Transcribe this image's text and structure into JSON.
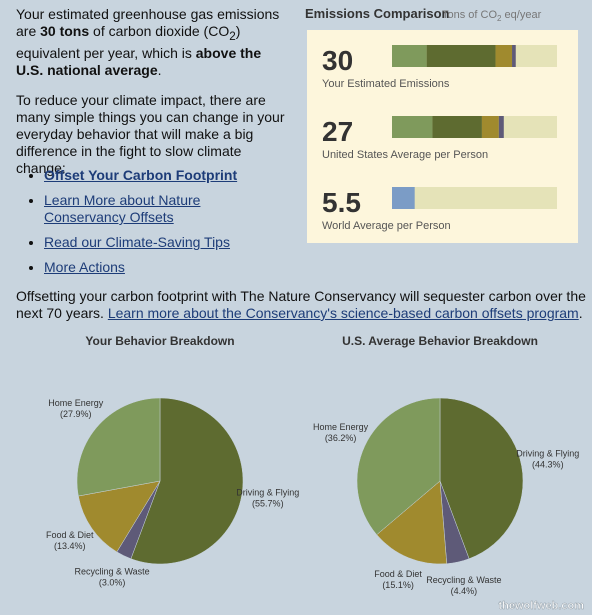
{
  "intro": [
    "Your estimated greenhouse gas emissions are ",
    "30 tons",
    " of carbon dioxide (CO",
    "2",
    ") equivalent per year, which is ",
    "above the U.S. national average",
    "."
  ],
  "paragraph": "To reduce your climate impact, there are many simple things you can change in your everyday behavior that will make a big difference in the fight to slow climate change:",
  "links": [
    "Offset Your Carbon Footprint",
    "Learn More about Nature Conservancy Offsets",
    "Read our Climate-Saving Tips",
    "More Actions"
  ],
  "footer": [
    "Offsetting your carbon footprint with The Nature Conservancy will sequester carbon over the next 70 years. ",
    "Learn more about the Conservancy's science-based carbon offsets program",
    "."
  ],
  "watermark": "thewolfweb.com",
  "chart_data": [
    {
      "type": "stacked-bar",
      "title": "Emissions Comparison",
      "subtitle": [
        "Tons of CO",
        "2",
        " eq/year"
      ],
      "categories": [
        "Your Estimated Emissions",
        "United States Average per Person",
        "World Average per Person"
      ],
      "totals": [
        30,
        27,
        5.5
      ],
      "xlim": [
        0,
        40
      ],
      "track_color": "#e5e3b8",
      "series": [
        {
          "color": "#7f9a5c",
          "values": [
            8.4,
            9.8,
            null
          ]
        },
        {
          "color": "#5e6b30",
          "values": [
            16.7,
            12,
            null
          ]
        },
        {
          "color": "#a08a2e",
          "values": [
            4,
            4.1,
            null
          ]
        },
        {
          "color": "#5e5a78",
          "values": [
            0.9,
            1.2,
            null
          ]
        },
        {
          "color": "#7b9cc6",
          "values": [
            null,
            null,
            5.5
          ]
        }
      ]
    },
    {
      "type": "pie",
      "title": "Your Behavior Breakdown",
      "categories": [
        "Driving & Flying",
        "Recycling & Waste",
        "Food & Diet",
        "Home Energy"
      ],
      "values": [
        55.7,
        3.0,
        13.4,
        27.9
      ],
      "value_labels": [
        "(55.7%)",
        "(3.0%)",
        "(13.4%)",
        "(27.9%)"
      ],
      "colors": [
        "#5e6b30",
        "#5e5a78",
        "#a08a2e",
        "#7f9a5c"
      ]
    },
    {
      "type": "pie",
      "title": "U.S. Average Behavior Breakdown",
      "categories": [
        "Driving & Flying",
        "Recycling & Waste",
        "Food & Diet",
        "Home Energy"
      ],
      "values": [
        44.3,
        4.4,
        15.1,
        36.2
      ],
      "value_labels": [
        "(44.3%)",
        "(4.4%)",
        "(15.1%)",
        "(36.2%)"
      ],
      "colors": [
        "#5e6b30",
        "#5e5a78",
        "#a08a2e",
        "#7f9a5c"
      ]
    }
  ]
}
